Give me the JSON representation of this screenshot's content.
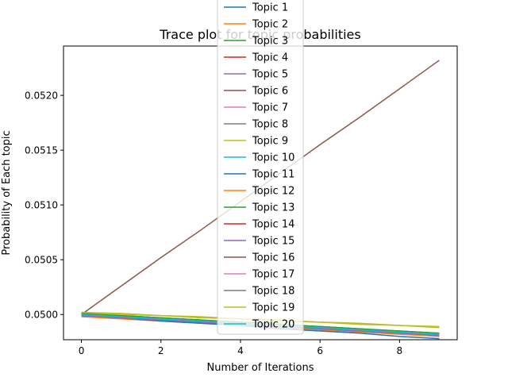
{
  "chart_data": {
    "type": "line",
    "title": "Trace plot for topic probabilities",
    "xlabel": "Number of Iterations",
    "ylabel": "Probability of Each topic",
    "xlim": [
      -0.45,
      9.45
    ],
    "ylim": [
      0.04977,
      0.05245
    ],
    "xticks": [
      0,
      2,
      4,
      6,
      8
    ],
    "xtick_labels": [
      "0",
      "2",
      "4",
      "6",
      "8"
    ],
    "yticks": [
      0.05,
      0.0505,
      0.051,
      0.0515,
      0.052
    ],
    "ytick_labels": [
      "0.0500",
      "0.0505",
      "0.0510",
      "0.0515",
      "0.0520"
    ],
    "grid": false,
    "legend_position": "top-center",
    "x": [
      0,
      1,
      2,
      3,
      4,
      5,
      6,
      7,
      8,
      9
    ],
    "series": [
      {
        "name": "Topic 1",
        "color": "#1f77b4",
        "values": [
          0.04999,
          0.04997,
          0.04995,
          0.04993,
          0.04991,
          0.04989,
          0.04987,
          0.04985,
          0.04983,
          0.04981
        ]
      },
      {
        "name": "Topic 2",
        "color": "#ff7f0e",
        "values": [
          0.04998,
          0.04996,
          0.04994,
          0.04992,
          0.0499,
          0.04988,
          0.04986,
          0.04984,
          0.04982,
          0.0498
        ]
      },
      {
        "name": "Topic 3",
        "color": "#2ca02c",
        "values": [
          0.05001,
          0.04999,
          0.04997,
          0.04995,
          0.04993,
          0.04991,
          0.04989,
          0.04987,
          0.04985,
          0.04983
        ]
      },
      {
        "name": "Topic 4",
        "color": "#d62728",
        "values": [
          0.05,
          0.04998,
          0.04996,
          0.04994,
          0.04992,
          0.0499,
          0.04988,
          0.04986,
          0.04984,
          0.04982
        ]
      },
      {
        "name": "Topic 5",
        "color": "#9467bd",
        "values": [
          0.04999,
          0.04997,
          0.04995,
          0.04993,
          0.04991,
          0.04989,
          0.04987,
          0.04985,
          0.04983,
          0.04981
        ]
      },
      {
        "name": "Topic 6",
        "color": "#8c564b",
        "values": [
          0.05,
          0.05026,
          0.05052,
          0.05077,
          0.05103,
          0.05129,
          0.05155,
          0.0518,
          0.05206,
          0.05232
        ]
      },
      {
        "name": "Topic 7",
        "color": "#e377c2",
        "values": [
          0.05,
          0.04998,
          0.04996,
          0.04994,
          0.04992,
          0.0499,
          0.04988,
          0.04986,
          0.04984,
          0.04982
        ]
      },
      {
        "name": "Topic 8",
        "color": "#7f7f7f",
        "values": [
          0.05,
          0.04998,
          0.04996,
          0.04994,
          0.04992,
          0.0499,
          0.04988,
          0.04986,
          0.04984,
          0.04982
        ]
      },
      {
        "name": "Topic 9",
        "color": "#bcbd22",
        "values": [
          0.05002,
          0.05001,
          0.04999,
          0.04998,
          0.04996,
          0.04995,
          0.04993,
          0.04992,
          0.0499,
          0.04989
        ]
      },
      {
        "name": "Topic 10",
        "color": "#17becf",
        "values": [
          0.04999,
          0.04997,
          0.04995,
          0.04993,
          0.04991,
          0.04989,
          0.04987,
          0.04985,
          0.04983,
          0.04981
        ]
      },
      {
        "name": "Topic 11",
        "color": "#1f77b4",
        "values": [
          0.04999,
          0.04997,
          0.04994,
          0.04992,
          0.0499,
          0.04987,
          0.04985,
          0.04983,
          0.0498,
          0.04978
        ]
      },
      {
        "name": "Topic 12",
        "color": "#ff7f0e",
        "values": [
          0.05,
          0.04998,
          0.04996,
          0.04994,
          0.04992,
          0.0499,
          0.04988,
          0.04986,
          0.04984,
          0.04982
        ]
      },
      {
        "name": "Topic 13",
        "color": "#2ca02c",
        "values": [
          0.05001,
          0.04999,
          0.04997,
          0.04995,
          0.04993,
          0.04991,
          0.04989,
          0.04987,
          0.04985,
          0.04983
        ]
      },
      {
        "name": "Topic 14",
        "color": "#d62728",
        "values": [
          0.05,
          0.04998,
          0.04996,
          0.04994,
          0.04992,
          0.0499,
          0.04988,
          0.04986,
          0.04984,
          0.04982
        ]
      },
      {
        "name": "Topic 15",
        "color": "#9467bd",
        "values": [
          0.04999,
          0.04997,
          0.04995,
          0.04993,
          0.04991,
          0.04989,
          0.04987,
          0.04985,
          0.04983,
          0.04981
        ]
      },
      {
        "name": "Topic 16",
        "color": "#8c564b",
        "values": [
          0.05,
          0.04998,
          0.04996,
          0.04994,
          0.04992,
          0.0499,
          0.04988,
          0.04986,
          0.04984,
          0.04982
        ]
      },
      {
        "name": "Topic 17",
        "color": "#e377c2",
        "values": [
          0.05,
          0.04998,
          0.04996,
          0.04994,
          0.04992,
          0.0499,
          0.04988,
          0.04986,
          0.04984,
          0.04982
        ]
      },
      {
        "name": "Topic 18",
        "color": "#7f7f7f",
        "values": [
          0.05,
          0.04998,
          0.04996,
          0.04994,
          0.04992,
          0.0499,
          0.04988,
          0.04986,
          0.04984,
          0.04982
        ]
      },
      {
        "name": "Topic 19",
        "color": "#bcbd22",
        "values": [
          0.05002,
          0.05,
          0.04999,
          0.04997,
          0.04996,
          0.04994,
          0.04993,
          0.04991,
          0.0499,
          0.04988
        ]
      },
      {
        "name": "Topic 20",
        "color": "#17becf",
        "values": [
          0.05,
          0.04998,
          0.04996,
          0.04994,
          0.04992,
          0.0499,
          0.04988,
          0.04986,
          0.04984,
          0.04982
        ]
      }
    ]
  }
}
